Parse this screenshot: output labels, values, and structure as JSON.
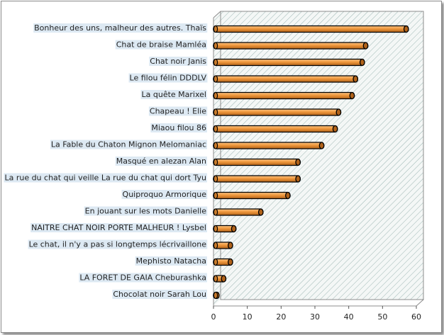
{
  "chart_data": {
    "type": "bar",
    "orientation": "horizontal",
    "title": "",
    "xlabel": "",
    "ylabel": "",
    "xlim": [
      0,
      60
    ],
    "xticks": [
      0,
      10,
      20,
      30,
      40,
      50,
      60
    ],
    "grid": false,
    "categories": [
      "Bonheur des uns, malheur des autres.  Thaïs",
      "Chat de braise Mamléa",
      "Chat noir Janis",
      "Le filou félin DDDLV",
      "La quête Marixel",
      "Chapeau ! Elie",
      "Miaou filou 86",
      "La Fable du Chaton Mignon Melomaniac",
      "Masqué en alezan Alan",
      "La rue du chat qui veille La rue du chat qui dort Tyu",
      "Quiproquo Armorique",
      "En jouant sur les mots Danielle",
      "NAITRE CHAT NOIR PORTE MALHEUR ! Lysbel",
      "Le chat, il n'y a pas si longtemps lécrivaillone",
      "Mephisto Natacha",
      "LA FORET DE GAIA  Cheburashka",
      "Chocolat noir Sarah Lou"
    ],
    "values": [
      57,
      45,
      44,
      42,
      41,
      37,
      36,
      32,
      25,
      25,
      22,
      14,
      6,
      5,
      5,
      3,
      1
    ],
    "colors": {
      "bar": "#f0983c",
      "bar_dark": "#b0621a",
      "outline": "#000000",
      "wall_fill": "#f4f7f6",
      "wall_hatch": "#9bb5b2",
      "label_bg": "#dde9f3"
    }
  }
}
